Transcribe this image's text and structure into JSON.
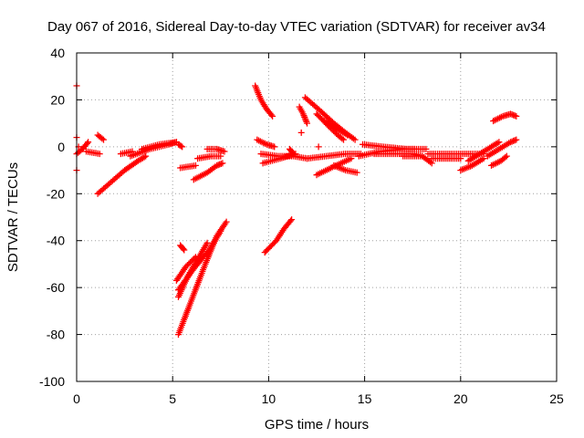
{
  "chart_data": {
    "type": "scatter",
    "title": "Day 067 of 2016, Sidereal Day-to-day VTEC variation (SDTVAR) for receiver av34",
    "xlabel": "GPS time / hours",
    "ylabel": "SDTVAR / TECUs",
    "xlim": [
      0,
      25
    ],
    "ylim": [
      -100,
      40
    ],
    "xticks": [
      "0",
      "5",
      "10",
      "15",
      "20",
      "25"
    ],
    "yticks": [
      "-100",
      "-80",
      "-60",
      "-40",
      "-20",
      "0",
      "20",
      "40"
    ],
    "grid": true,
    "marker": "+",
    "color": "#ff0000",
    "tracks": [
      [
        [
          0.0,
          -3
        ],
        [
          0.3,
          -1
        ],
        [
          0.6,
          2
        ]
      ],
      [
        [
          0.5,
          -2
        ],
        [
          1.2,
          -3
        ]
      ],
      [
        [
          1.1,
          5
        ],
        [
          1.4,
          3
        ]
      ],
      [
        [
          1.1,
          -20
        ],
        [
          1.8,
          -15
        ],
        [
          2.5,
          -10
        ],
        [
          3.2,
          -6
        ],
        [
          3.6,
          -4
        ]
      ],
      [
        [
          2.3,
          -3
        ],
        [
          2.9,
          -2
        ]
      ],
      [
        [
          2.8,
          -4
        ],
        [
          3.8,
          -1
        ],
        [
          4.8,
          1
        ],
        [
          5.2,
          2
        ]
      ],
      [
        [
          3.4,
          -1
        ],
        [
          4.3,
          1
        ],
        [
          5.2,
          2
        ]
      ],
      [
        [
          5.3,
          -80
        ],
        [
          6.0,
          -65
        ],
        [
          6.7,
          -50
        ],
        [
          7.3,
          -38
        ],
        [
          7.8,
          -32
        ]
      ],
      [
        [
          5.3,
          -64
        ],
        [
          5.8,
          -55
        ],
        [
          6.3,
          -48
        ],
        [
          6.8,
          -41
        ]
      ],
      [
        [
          5.3,
          -61
        ],
        [
          6.1,
          -52
        ],
        [
          6.9,
          -44
        ],
        [
          7.5,
          -36
        ]
      ],
      [
        [
          5.2,
          -57
        ],
        [
          5.7,
          -51
        ],
        [
          6.2,
          -47
        ]
      ],
      [
        [
          5.4,
          -42
        ],
        [
          5.6,
          -44
        ]
      ],
      [
        [
          5.3,
          1
        ],
        [
          5.5,
          0
        ]
      ],
      [
        [
          5.4,
          -9
        ],
        [
          6.2,
          -8
        ]
      ],
      [
        [
          6.1,
          -14
        ],
        [
          6.8,
          -11
        ],
        [
          7.3,
          -8
        ],
        [
          7.6,
          -7
        ]
      ],
      [
        [
          6.3,
          -5
        ],
        [
          7.0,
          -4
        ],
        [
          7.5,
          -4
        ]
      ],
      [
        [
          6.8,
          -1
        ],
        [
          7.3,
          -1
        ],
        [
          7.7,
          -2
        ]
      ],
      [
        [
          9.3,
          26
        ],
        [
          9.6,
          20
        ],
        [
          9.9,
          16
        ],
        [
          10.2,
          13
        ]
      ],
      [
        [
          9.4,
          3
        ],
        [
          9.9,
          1
        ],
        [
          10.3,
          0
        ]
      ],
      [
        [
          9.6,
          -3
        ],
        [
          10.5,
          -4
        ],
        [
          11.3,
          -4
        ],
        [
          12.0,
          -5
        ]
      ],
      [
        [
          9.7,
          -7
        ],
        [
          10.6,
          -5
        ],
        [
          11.4,
          -3
        ]
      ],
      [
        [
          9.8,
          -45
        ],
        [
          10.4,
          -40
        ],
        [
          10.8,
          -35
        ],
        [
          11.2,
          -31
        ]
      ],
      [
        [
          11.1,
          -1
        ],
        [
          11.3,
          -3
        ]
      ],
      [
        [
          11.7,
          6
        ]
      ],
      [
        [
          11.6,
          17
        ],
        [
          11.8,
          14
        ],
        [
          12.0,
          10
        ]
      ],
      [
        [
          11.9,
          21
        ],
        [
          12.6,
          16
        ],
        [
          13.4,
          10
        ],
        [
          14.0,
          6
        ],
        [
          14.5,
          3
        ]
      ],
      [
        [
          12.5,
          14
        ],
        [
          13.1,
          9
        ],
        [
          13.6,
          5
        ],
        [
          13.9,
          3
        ]
      ],
      [
        [
          12.9,
          11
        ],
        [
          13.5,
          8
        ],
        [
          14.1,
          5
        ]
      ],
      [
        [
          12.6,
          0
        ]
      ],
      [
        [
          12.0,
          -5
        ],
        [
          13.0,
          -4
        ],
        [
          14.0,
          -3
        ],
        [
          14.8,
          -3
        ]
      ],
      [
        [
          12.5,
          -12
        ],
        [
          13.5,
          -8
        ],
        [
          14.3,
          -5
        ]
      ],
      [
        [
          13.4,
          -8
        ],
        [
          14.0,
          -10
        ],
        [
          14.6,
          -11
        ]
      ],
      [
        [
          14.7,
          -4
        ],
        [
          15.8,
          -2
        ],
        [
          17.0,
          -1
        ],
        [
          17.6,
          -1
        ]
      ],
      [
        [
          14.9,
          1
        ],
        [
          16.0,
          0
        ],
        [
          17.2,
          -1
        ],
        [
          18.2,
          -1
        ]
      ],
      [
        [
          15.5,
          -3
        ],
        [
          16.5,
          -3
        ],
        [
          17.5,
          -3
        ],
        [
          18.0,
          -4
        ]
      ],
      [
        [
          17.0,
          -4
        ],
        [
          18.0,
          -4
        ],
        [
          18.5,
          -7
        ]
      ],
      [
        [
          18.3,
          -3
        ],
        [
          19.3,
          -3
        ],
        [
          20.3,
          -3
        ],
        [
          21.2,
          -3
        ]
      ],
      [
        [
          18.5,
          -5
        ],
        [
          19.5,
          -5
        ],
        [
          20.0,
          -5
        ]
      ],
      [
        [
          20.0,
          -10
        ],
        [
          20.6,
          -8
        ],
        [
          21.2,
          -5
        ]
      ],
      [
        [
          20.4,
          -6
        ],
        [
          21.0,
          -3
        ],
        [
          21.6,
          0
        ],
        [
          22.0,
          2
        ]
      ],
      [
        [
          21.4,
          -4
        ],
        [
          22.0,
          -1
        ],
        [
          22.6,
          2
        ],
        [
          22.9,
          3
        ]
      ],
      [
        [
          21.6,
          -8
        ],
        [
          22.1,
          -6
        ],
        [
          22.4,
          -4
        ]
      ],
      [
        [
          21.7,
          11
        ],
        [
          22.2,
          13
        ],
        [
          22.6,
          14
        ],
        [
          22.9,
          13
        ]
      ],
      [
        [
          0.0,
          26
        ]
      ],
      [
        [
          0.0,
          4
        ]
      ],
      [
        [
          0.0,
          -10
        ]
      ],
      [
        [
          0.1,
          0
        ]
      ]
    ]
  }
}
